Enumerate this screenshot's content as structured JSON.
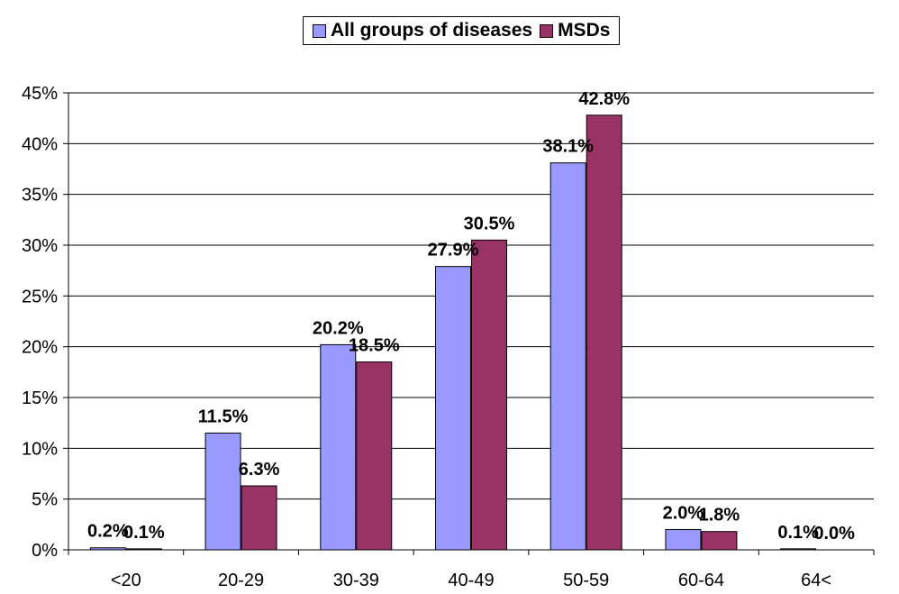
{
  "chart_data": {
    "type": "bar",
    "categories": [
      "<20",
      "20-29",
      "30-39",
      "40-49",
      "50-59",
      "60-64",
      "64<"
    ],
    "series": [
      {
        "name": "All groups of diseases",
        "color": "#9999FF",
        "values": [
          0.2,
          11.5,
          20.2,
          27.9,
          38.1,
          2.0,
          0.1
        ],
        "labels": [
          "0.2%",
          "11.5%",
          "20.2%",
          "27.9%",
          "38.1%",
          "2.0%",
          "0.1%"
        ]
      },
      {
        "name": "MSDs",
        "color": "#993366",
        "values": [
          0.1,
          6.3,
          18.5,
          30.5,
          42.8,
          1.8,
          0.0
        ],
        "labels": [
          "0.1%",
          "6.3%",
          "18.5%",
          "30.5%",
          "42.8%",
          "1.8%",
          "0.0%"
        ]
      }
    ],
    "yticks": [
      "0%",
      "5%",
      "10%",
      "15%",
      "20%",
      "25%",
      "30%",
      "35%",
      "40%",
      "45%"
    ],
    "ylim": [
      0,
      45
    ],
    "grid": true,
    "legend_position": "top-center"
  }
}
